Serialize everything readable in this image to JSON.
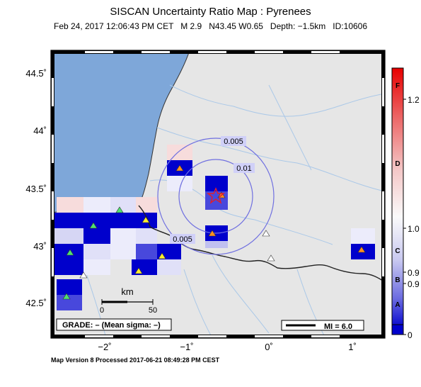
{
  "map": {
    "title": "SISCAN Uncertainty Ratio Map : Pyrenees",
    "event_line": "Feb 24, 2017 12:06:43 PM CET   M 2.9   N43.45 W0.65   Depth: −1.5km   ID:10606",
    "footer": "Map Version 8 Processed 2017-06-21 08:49:28 PM CEST",
    "lat_ticks": [
      "44.5˚",
      "44˚",
      "43.5˚",
      "43˚",
      "42.5˚"
    ],
    "lon_ticks": [
      "−2˚",
      "−1˚",
      "0˚",
      "1˚"
    ],
    "contour_labels": [
      "0.005",
      "0.01",
      "0.005"
    ],
    "grade_label": "GRADE: – (Mean sigma: –)",
    "scale_bar": {
      "unit": "km",
      "tick_start": "0",
      "tick_end": "50"
    },
    "mi_legend": "MI = 6.0",
    "colors": {
      "sea": "#7ea7d9",
      "land": "#e6e6e6",
      "cell_high": "#0000cc",
      "epicenter": "#e0202a"
    }
  },
  "colorbar": {
    "grades": [
      "F",
      "D",
      "C",
      "B",
      "A"
    ],
    "values": [
      "1.2",
      "1.0",
      "0.9",
      "0.9",
      "0"
    ]
  }
}
